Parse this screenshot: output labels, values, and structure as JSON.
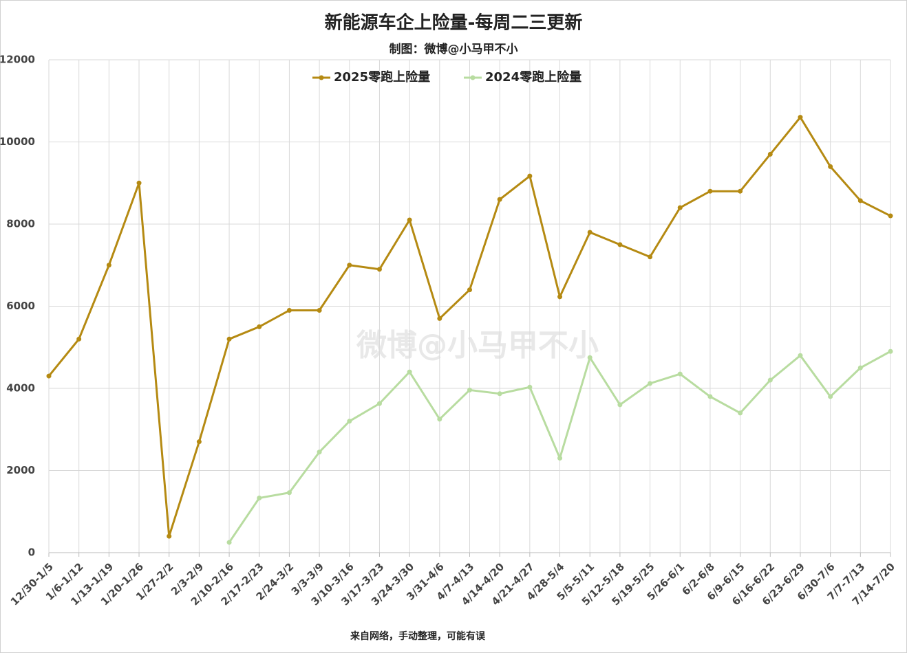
{
  "chart_data": {
    "type": "line",
    "title": "新能源车企上险量-每周二三更新",
    "subtitle": "制图：微博@小马甲不小",
    "watermark": "微博@小马甲不小",
    "footnote": "来自网络，手动整理，可能有误",
    "categories": [
      "12/30-1/5",
      "1/6-1/12",
      "1/13-1/19",
      "1/20-1/26",
      "1/27-2/2",
      "2/3-2/9",
      "2/10-2/16",
      "2/17-2/23",
      "2/24-3/2",
      "3/3-3/9",
      "3/10-3/16",
      "3/17-3/23",
      "3/24-3/30",
      "3/31-4/6",
      "4/7-4/13",
      "4/14-4/20",
      "4/21-4/27",
      "4/28-5/4",
      "5/5-5/11",
      "5/12-5/18",
      "5/19-5/25",
      "5/26-6/1",
      "6/2-6/8",
      "6/9-6/15",
      "6/16-6/22",
      "6/23-6/29",
      "6/30-7/6",
      "7/7-7/13",
      "7/14-7/20"
    ],
    "series": [
      {
        "name": "2025零跑上险量",
        "color": "#b58a12",
        "values": [
          4300,
          5200,
          7000,
          9000,
          400,
          2700,
          5200,
          5500,
          5900,
          5900,
          7000,
          6900,
          8100,
          5700,
          6400,
          8600,
          9170,
          6230,
          7800,
          7500,
          7200,
          8400,
          8800,
          8800,
          9700,
          10600,
          9400,
          8570,
          8200
        ]
      },
      {
        "name": "2024零跑上险量",
        "color": "#b8dca0",
        "values": [
          null,
          null,
          null,
          null,
          null,
          null,
          250,
          1330,
          1460,
          2450,
          3200,
          3630,
          4400,
          3250,
          3960,
          3870,
          4030,
          2300,
          4750,
          3600,
          4120,
          4350,
          3800,
          3400,
          4200,
          4800,
          3800,
          4500,
          4900
        ]
      }
    ],
    "ylim": [
      0,
      12000
    ],
    "yticks": [
      0,
      2000,
      4000,
      6000,
      8000,
      10000,
      12000
    ],
    "grid": true,
    "legend": "top"
  }
}
